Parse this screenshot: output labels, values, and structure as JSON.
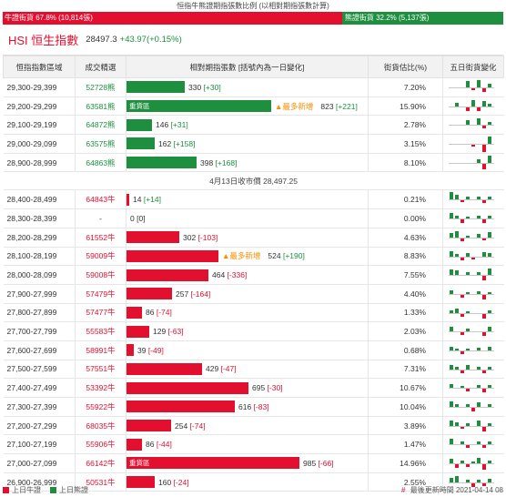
{
  "ratio": {
    "title": "恒指牛熊證期指張數比例 (以相對期指張數計算)",
    "bull_label": "牛證街貨 67.8% (10,814張)",
    "bear_label": "熊證街貨 32.2% (5,137張)",
    "bull_pct": 67.8
  },
  "index": {
    "title": "HSI 恒生指數",
    "value": "28497.3",
    "change": "+43.97(+0.15%)"
  },
  "headers": {
    "range": "恒指指數區域",
    "code": "成交精選",
    "contracts": "相對期指張數 [括號內為一日變化]",
    "pct": "街貨估比(%)",
    "five_day": "五日街貨變化"
  },
  "bar_scale_max": 985,
  "top_rows": [
    {
      "range": "29,300-29,399",
      "code": "52728熊",
      "type": "bear",
      "value": 330,
      "change": "[+30]",
      "badge": "",
      "tag": "",
      "pct": "7.20%",
      "mini": [
        0,
        0,
        0,
        7,
        -2,
        8,
        -4,
        4
      ]
    },
    {
      "range": "29,200-29,299",
      "code": "63581熊",
      "type": "bear",
      "value": 823,
      "change": "[+221]",
      "badge": "重貨區",
      "tag": "▲最多新增",
      "pct": "15.90%",
      "mini": [
        0,
        4,
        0,
        -4,
        7,
        -4,
        6,
        3
      ]
    },
    {
      "range": "29,100-29,199",
      "code": "64872熊",
      "type": "bear",
      "value": 146,
      "change": "[+31]",
      "badge": "",
      "tag": "",
      "pct": "2.78%",
      "mini": [
        0,
        0,
        0,
        5,
        0,
        7,
        -3,
        3
      ]
    },
    {
      "range": "29,000-29,099",
      "code": "63575熊",
      "type": "bear",
      "value": 162,
      "change": "[+158]",
      "badge": "",
      "tag": "",
      "pct": "3.15%",
      "mini": [
        0,
        0,
        0,
        0,
        -2,
        0,
        -8,
        8
      ]
    },
    {
      "range": "28,900-28,999",
      "code": "64863熊",
      "type": "bear",
      "value": 398,
      "change": "[+168]",
      "badge": "",
      "tag": "",
      "pct": "8.10%",
      "mini": [
        0,
        0,
        0,
        0,
        0,
        4,
        -6,
        8
      ]
    }
  ],
  "separator": "4月13日收市價 28,497.25",
  "bottom_rows": [
    {
      "range": "28,400-28,499",
      "code": "64843牛",
      "type": "bull",
      "value": 14,
      "change": "[+14]",
      "badge": "",
      "tag": "",
      "pct": "0.21%",
      "mini": [
        8,
        5,
        -2,
        3,
        0,
        3,
        -3,
        3
      ]
    },
    {
      "range": "28,300-28,399",
      "code": "-",
      "type": "none",
      "value": 0,
      "change": "[0]",
      "badge": "",
      "tag": "",
      "pct": "0.00%",
      "mini": [
        6,
        3,
        -4,
        2,
        0,
        3,
        -4,
        3
      ]
    },
    {
      "range": "28,200-28,299",
      "code": "61552牛",
      "type": "bull",
      "value": 302,
      "change": "[-103]",
      "badge": "",
      "tag": "",
      "pct": "4.63%",
      "mini": [
        5,
        7,
        -3,
        2,
        0,
        4,
        -2,
        6
      ]
    },
    {
      "range": "28,100-28,199",
      "code": "59009牛",
      "type": "bull",
      "value": 524,
      "change": "[+190]",
      "badge": "",
      "tag": "▲最多新增",
      "pct": "8.83%",
      "mini": [
        6,
        3,
        -3,
        4,
        -2,
        0,
        5,
        4
      ]
    },
    {
      "range": "28,000-28,099",
      "code": "59008牛",
      "type": "bull",
      "value": 464,
      "change": "[-336]",
      "badge": "",
      "tag": "",
      "pct": "7.55%",
      "mini": [
        6,
        5,
        0,
        3,
        0,
        3,
        -5,
        7
      ]
    },
    {
      "range": "27,900-27,999",
      "code": "57479牛",
      "type": "bull",
      "value": 257,
      "change": "[-164]",
      "badge": "",
      "tag": "",
      "pct": "4.40%",
      "mini": [
        4,
        0,
        -3,
        2,
        0,
        3,
        -5,
        2
      ]
    },
    {
      "range": "27,800-27,899",
      "code": "57477牛",
      "type": "bull",
      "value": 86,
      "change": "[-74]",
      "badge": "",
      "tag": "",
      "pct": "1.33%",
      "mini": [
        3,
        5,
        -3,
        2,
        0,
        0,
        -5,
        3
      ]
    },
    {
      "range": "27,700-27,799",
      "code": "55583牛",
      "type": "bull",
      "value": 129,
      "change": "[-63]",
      "badge": "",
      "tag": "",
      "pct": "2.03%",
      "mini": [
        5,
        0,
        -3,
        3,
        0,
        0,
        -4,
        5
      ]
    },
    {
      "range": "27,600-27,699",
      "code": "58991牛",
      "type": "bull",
      "value": 39,
      "change": "[-49]",
      "badge": "",
      "tag": "",
      "pct": "0.68%",
      "mini": [
        4,
        2,
        -3,
        2,
        0,
        3,
        0,
        4
      ]
    },
    {
      "range": "27,500-27,599",
      "code": "57551牛",
      "type": "bull",
      "value": 429,
      "change": "[-47]",
      "badge": "",
      "tag": "",
      "pct": "7.31%",
      "mini": [
        5,
        3,
        -3,
        5,
        0,
        3,
        -3,
        3
      ]
    },
    {
      "range": "27,400-27,499",
      "code": "53392牛",
      "type": "bull",
      "value": 695,
      "change": "[-30]",
      "badge": "",
      "tag": "",
      "pct": "10.67%",
      "mini": [
        4,
        0,
        2,
        -3,
        0,
        3,
        -4,
        3
      ]
    },
    {
      "range": "27,300-27,399",
      "code": "55922牛",
      "type": "bull",
      "value": 616,
      "change": "[-83]",
      "badge": "",
      "tag": "",
      "pct": "10.04%",
      "mini": [
        6,
        3,
        0,
        3,
        -4,
        5,
        0,
        3
      ]
    },
    {
      "range": "27,200-27,299",
      "code": "68035牛",
      "type": "bull",
      "value": 254,
      "change": "[-74]",
      "badge": "",
      "tag": "",
      "pct": "3.89%",
      "mini": [
        6,
        4,
        -2,
        3,
        0,
        6,
        -5,
        3
      ]
    },
    {
      "range": "27,100-27,199",
      "code": "55906牛",
      "type": "bull",
      "value": 86,
      "change": "[-44]",
      "badge": "",
      "tag": "",
      "pct": "1.47%",
      "mini": [
        6,
        0,
        3,
        -3,
        0,
        3,
        -3,
        3
      ]
    },
    {
      "range": "27,000-27,099",
      "code": "66142牛",
      "type": "bull",
      "value": 985,
      "change": "[-66]",
      "badge": "重貨區",
      "tag": "",
      "pct": "14.96%",
      "mini": [
        5,
        -4,
        3,
        -3,
        2,
        6,
        -6,
        3
      ]
    },
    {
      "range": "26,900-26,999",
      "code": "50531牛",
      "type": "bull",
      "value": 160,
      "change": "[-24]",
      "badge": "",
      "tag": "",
      "pct": "2.55%",
      "mini": [
        5,
        7,
        0,
        3,
        -4,
        3,
        -3,
        4
      ]
    }
  ],
  "footer": {
    "legend_bull": "上日牛證",
    "legend_bear": "上日熊證",
    "update_label": "最後更新時間",
    "update_time": "2021-04-14 08",
    "marker": "#"
  },
  "colors": {
    "bull": "#e30f2f",
    "bear": "#1d8f3e",
    "most_new": "#ff8c00"
  }
}
